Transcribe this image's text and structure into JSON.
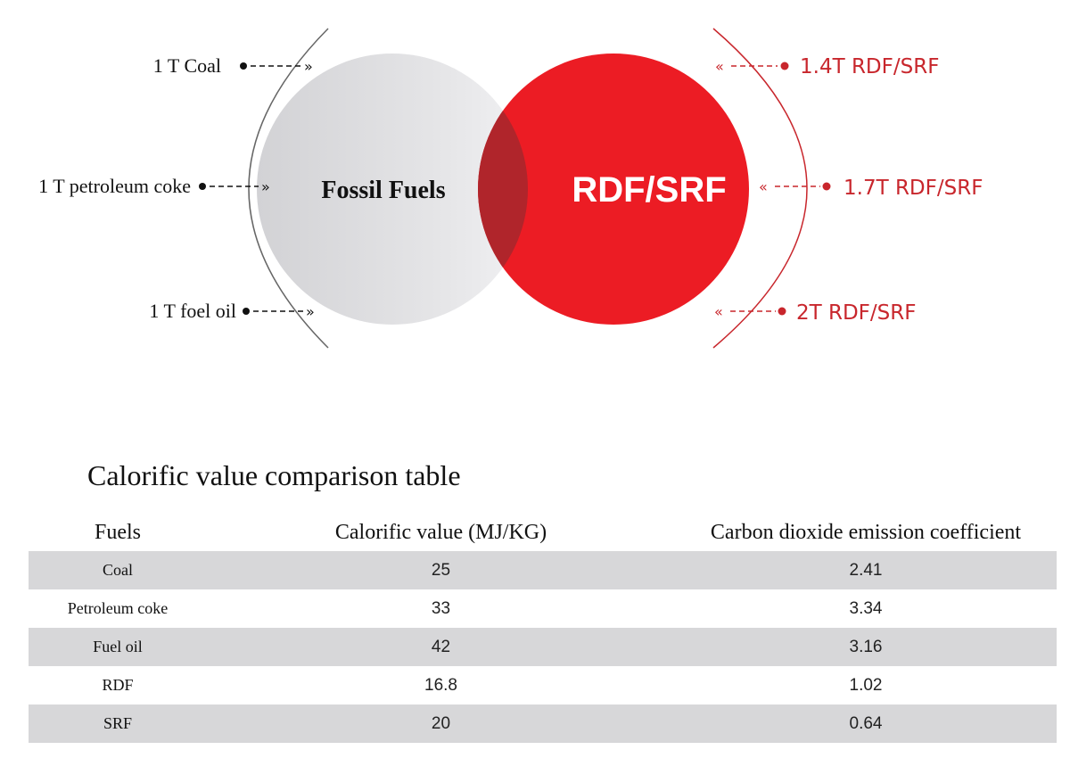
{
  "diagram": {
    "left_circle_label": "Fossil Fuels",
    "right_circle_label": "RDF/SRF",
    "left_items": [
      {
        "label": "1 T Coal"
      },
      {
        "label": "1 T petroleum coke"
      },
      {
        "label": "1 T foel oil"
      }
    ],
    "right_items": [
      {
        "label": "1.4T RDF/SRF"
      },
      {
        "label": "1.7T RDF/SRF"
      },
      {
        "label": "2T RDF/SRF"
      }
    ],
    "colors": {
      "fossil_circle": "#e4e4e6",
      "rdf_circle": "#ec1c24",
      "overlap": "#b0252b",
      "right_accent": "#c8262c"
    }
  },
  "table": {
    "title": "Calorific value comparison table",
    "headers": [
      "Fuels",
      "Calorific value (MJ/KG)",
      "Carbon dioxide emission coefficient"
    ],
    "rows": [
      {
        "fuel": "Coal",
        "calorific": "25",
        "co2": "2.41"
      },
      {
        "fuel": "Petroleum coke",
        "calorific": "33",
        "co2": "3.34"
      },
      {
        "fuel": "Fuel oil",
        "calorific": "42",
        "co2": "3.16"
      },
      {
        "fuel": "RDF",
        "calorific": "16.8",
        "co2": "1.02"
      },
      {
        "fuel": "SRF",
        "calorific": "20",
        "co2": "0.64"
      }
    ]
  }
}
